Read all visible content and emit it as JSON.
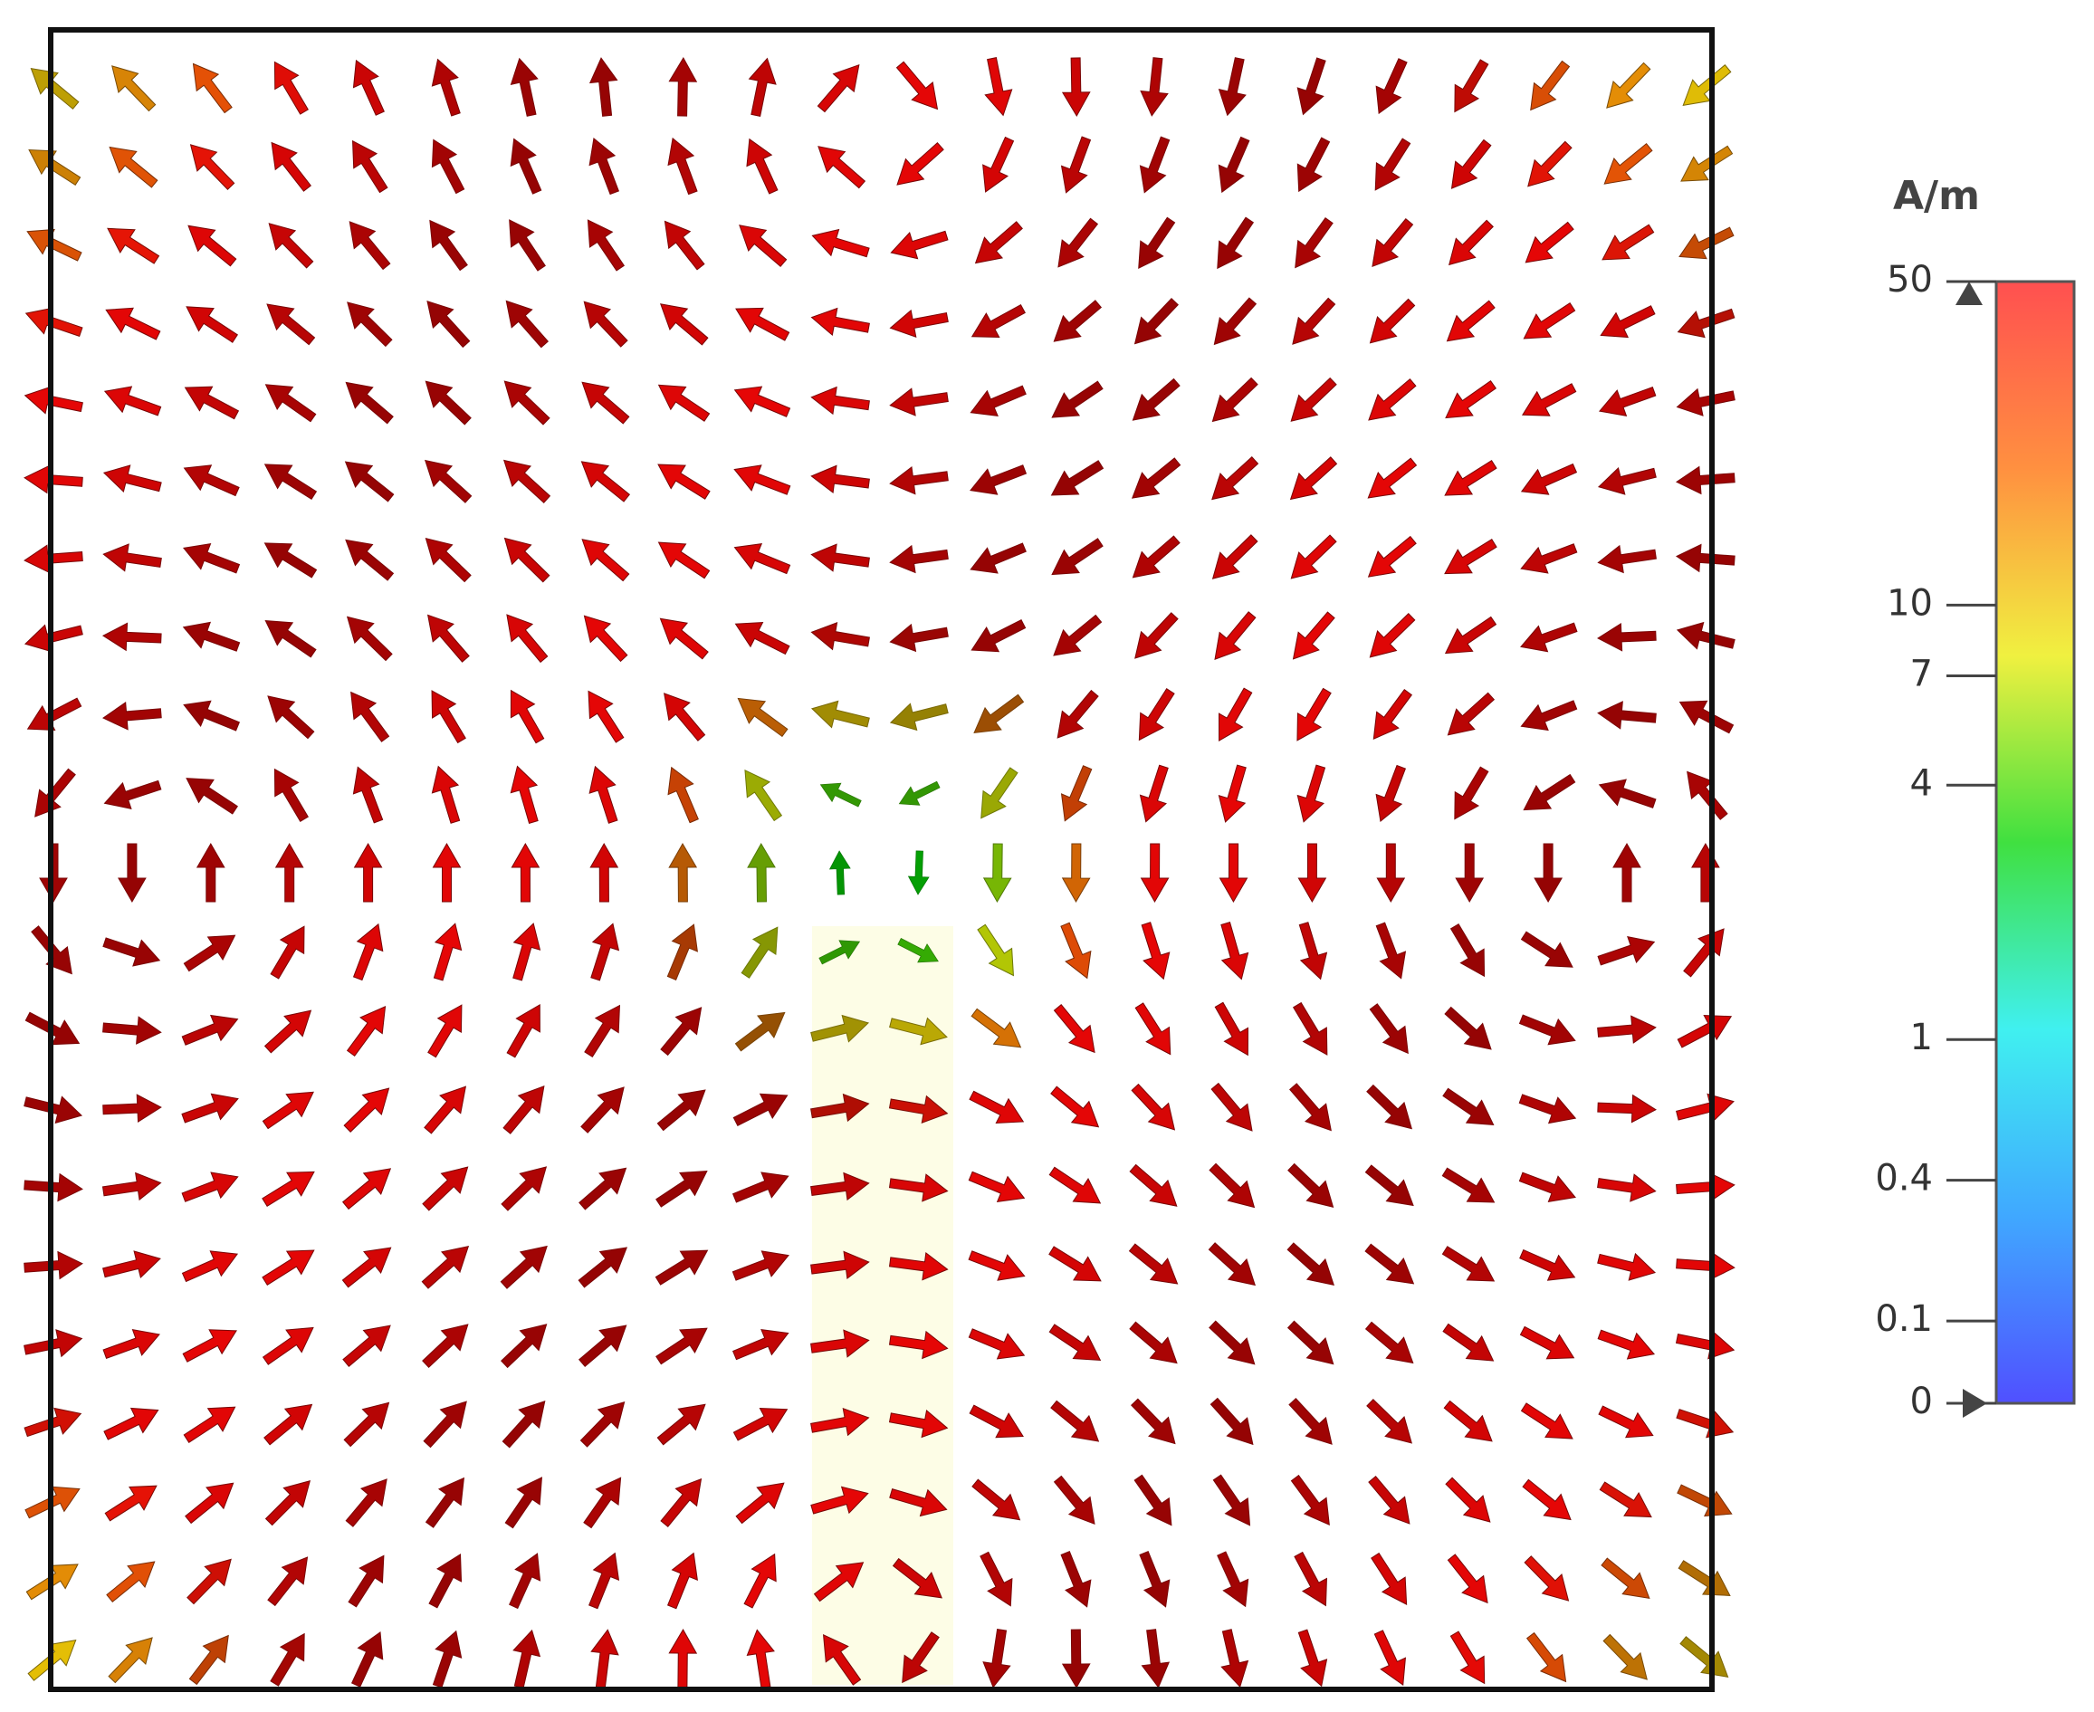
{
  "chart_data": {
    "type": "vector-field",
    "colorbar": {
      "label": "A/m",
      "ylim": [
        0,
        50
      ],
      "ticks": [
        0,
        0.1,
        0.4,
        1,
        4,
        7,
        10,
        50
      ],
      "colors": [
        "#5050ff",
        "#40a8ff",
        "#40f0f0",
        "#40e040",
        "#f0f040",
        "#ff9040",
        "#ff5050"
      ]
    }
  }
}
